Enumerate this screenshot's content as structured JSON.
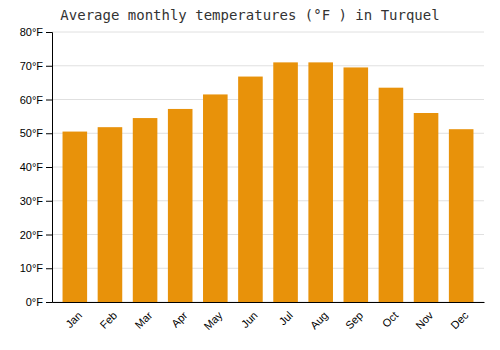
{
  "chart_data": {
    "type": "bar",
    "title": "Average monthly temperatures (°F ) in Turquel",
    "categories": [
      "Jan",
      "Feb",
      "Mar",
      "Apr",
      "May",
      "Jun",
      "Jul",
      "Aug",
      "Sep",
      "Oct",
      "Nov",
      "Dec"
    ],
    "values": [
      50.5,
      51.8,
      54.5,
      57.2,
      61.5,
      66.8,
      71.0,
      71.0,
      69.5,
      63.5,
      56.0,
      51.2
    ],
    "color": "#E8920A",
    "ylim": [
      0,
      80
    ],
    "yticks": [
      {
        "value": 0,
        "label": "0°F"
      },
      {
        "value": 10,
        "label": "10°F"
      },
      {
        "value": 20,
        "label": "20°F"
      },
      {
        "value": 30,
        "label": "30°F"
      },
      {
        "value": 40,
        "label": "40°F"
      },
      {
        "value": 50,
        "label": "50°F"
      },
      {
        "value": 60,
        "label": "60°F"
      },
      {
        "value": 70,
        "label": "70°F"
      },
      {
        "value": 80,
        "label": "80°F"
      }
    ],
    "grid": true
  }
}
